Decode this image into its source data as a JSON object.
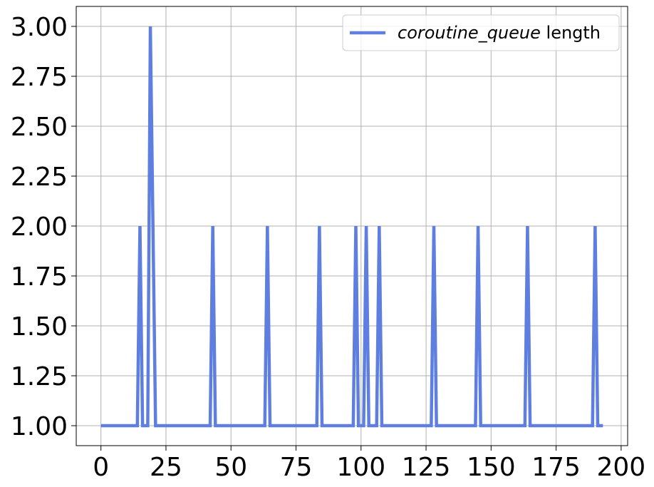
{
  "chart_data": {
    "type": "line",
    "title": "",
    "xlabel": "",
    "ylabel": "",
    "xlim": [
      -9.5,
      202.5
    ],
    "ylim": [
      0.9,
      3.1
    ],
    "xticks": [
      0,
      25,
      50,
      75,
      100,
      125,
      150,
      175,
      200
    ],
    "xtick_labels": [
      "0",
      "25",
      "50",
      "75",
      "100",
      "125",
      "150",
      "175",
      "200"
    ],
    "yticks": [
      1.0,
      1.25,
      1.5,
      1.75,
      2.0,
      2.25,
      2.5,
      2.75,
      3.0
    ],
    "ytick_labels": [
      "1.00",
      "1.25",
      "1.50",
      "1.75",
      "2.00",
      "2.25",
      "2.50",
      "2.75",
      "3.00"
    ],
    "grid": true,
    "legend_position": "top-right",
    "series": [
      {
        "legend_italic": "coroutine_queue",
        "legend_rest": " length",
        "color": "#5f7fe0",
        "x": [
          0,
          14,
          15,
          16,
          17,
          18,
          19,
          20,
          21,
          42,
          43,
          44,
          63,
          64,
          65,
          83,
          84,
          85,
          97,
          98,
          99,
          101,
          102,
          103,
          106,
          107,
          108,
          127,
          128,
          129,
          144,
          145,
          146,
          163,
          164,
          165,
          189,
          190,
          191,
          193
        ],
        "y": [
          1,
          1,
          2,
          1,
          1,
          1,
          3,
          2,
          1,
          1,
          2,
          1,
          1,
          2,
          1,
          1,
          2,
          1,
          1,
          2,
          1,
          1,
          2,
          1,
          1,
          2,
          1,
          1,
          2,
          1,
          1,
          2,
          1,
          1,
          2,
          1,
          1,
          2,
          1,
          1
        ]
      }
    ]
  }
}
